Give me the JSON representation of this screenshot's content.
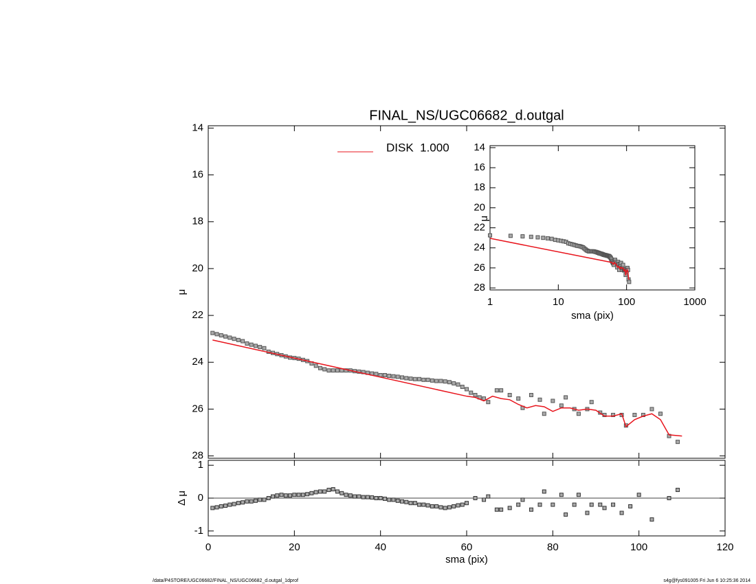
{
  "chart_data": [
    {
      "type": "scatter",
      "title": "FINAL_NS/UGC06682_d.outgal",
      "ylabel": "μ",
      "ylim": [
        28.1,
        13.9
      ],
      "yticks": [
        14,
        16,
        18,
        20,
        22,
        24,
        26,
        28
      ],
      "series": [
        {
          "color": "#555555",
          "x": [
            1,
            2,
            3,
            4,
            5,
            6,
            7,
            8,
            9,
            10,
            11,
            12,
            13,
            14,
            15,
            16,
            17,
            18,
            19,
            20,
            21,
            22,
            23,
            24,
            25,
            26,
            27,
            28,
            29,
            30,
            31,
            32,
            33,
            34,
            35,
            36,
            37,
            38,
            39,
            40,
            41,
            42,
            43,
            44,
            45,
            46,
            47,
            48,
            49,
            50,
            51,
            52,
            53,
            54,
            55,
            56,
            57,
            58,
            59,
            60,
            61,
            62,
            63,
            64,
            65,
            67,
            68,
            70,
            72,
            73,
            75,
            77,
            78,
            80,
            82,
            83,
            85,
            86,
            88,
            89,
            91,
            92,
            94,
            96,
            97,
            99,
            101,
            103,
            105,
            107,
            109
          ],
          "values": [
            22.75,
            22.8,
            22.85,
            22.9,
            22.95,
            23.0,
            23.05,
            23.1,
            23.2,
            23.25,
            23.3,
            23.35,
            23.4,
            23.55,
            23.6,
            23.65,
            23.7,
            23.75,
            23.8,
            23.82,
            23.85,
            23.9,
            23.95,
            24.05,
            24.15,
            24.25,
            24.3,
            24.35,
            24.35,
            24.35,
            24.35,
            24.35,
            24.35,
            24.38,
            24.4,
            24.42,
            24.45,
            24.48,
            24.5,
            24.55,
            24.55,
            24.58,
            24.6,
            24.62,
            24.65,
            24.68,
            24.7,
            24.72,
            24.72,
            24.75,
            24.75,
            24.78,
            24.8,
            24.8,
            24.82,
            24.85,
            24.9,
            24.95,
            25.05,
            25.15,
            25.3,
            25.4,
            25.5,
            25.55,
            25.7,
            25.2,
            25.2,
            25.4,
            25.55,
            25.95,
            25.4,
            25.6,
            26.2,
            25.65,
            25.85,
            25.5,
            26.0,
            26.2,
            26.0,
            25.7,
            26.15,
            26.25,
            26.25,
            26.25,
            26.7,
            26.25,
            26.25,
            26.0,
            26.2,
            27.15,
            27.4
          ]
        },
        {
          "name": "DISK  1.000",
          "color": "#e8141c",
          "x": [
            1,
            60,
            62,
            64,
            66,
            68,
            70,
            72,
            74,
            76,
            78,
            80,
            82,
            84,
            86,
            88,
            90,
            92,
            94,
            96,
            97,
            99,
            101,
            103,
            105,
            107,
            110
          ],
          "values": [
            23.05,
            25.45,
            25.5,
            25.65,
            25.45,
            25.55,
            25.6,
            25.8,
            25.95,
            25.85,
            25.9,
            26.1,
            25.95,
            25.95,
            26.05,
            26.0,
            26.05,
            26.3,
            26.3,
            26.2,
            26.75,
            26.45,
            26.3,
            26.2,
            26.45,
            27.1,
            27.15
          ]
        }
      ]
    },
    {
      "type": "scatter",
      "ylabel": "Δ μ",
      "xlabel": "sma (pix)",
      "xlim": [
        0,
        120
      ],
      "xticks": [
        0,
        20,
        40,
        60,
        80,
        100,
        120
      ],
      "ylim": [
        -1.15,
        1.15
      ],
      "yticks": [
        1,
        0,
        -1
      ],
      "color": "#333333",
      "x": [
        1,
        2,
        3,
        4,
        5,
        6,
        7,
        8,
        9,
        10,
        11,
        12,
        13,
        14,
        15,
        16,
        17,
        18,
        19,
        20,
        21,
        22,
        23,
        24,
        25,
        26,
        27,
        28,
        29,
        30,
        31,
        32,
        33,
        34,
        35,
        36,
        37,
        38,
        39,
        40,
        41,
        42,
        43,
        44,
        45,
        46,
        47,
        48,
        49,
        50,
        51,
        52,
        53,
        54,
        55,
        56,
        57,
        58,
        59,
        60,
        62,
        64,
        65,
        67,
        68,
        70,
        72,
        73,
        75,
        77,
        78,
        80,
        82,
        83,
        85,
        86,
        88,
        89,
        91,
        92,
        94,
        96,
        98,
        100,
        103,
        107,
        109
      ],
      "values": [
        -0.3,
        -0.28,
        -0.25,
        -0.23,
        -0.2,
        -0.18,
        -0.15,
        -0.13,
        -0.1,
        -0.1,
        -0.08,
        -0.05,
        -0.05,
        0.0,
        0.05,
        0.08,
        0.1,
        0.08,
        0.08,
        0.1,
        0.1,
        0.1,
        0.12,
        0.15,
        0.18,
        0.2,
        0.2,
        0.25,
        0.27,
        0.2,
        0.15,
        0.1,
        0.08,
        0.05,
        0.05,
        0.03,
        0.03,
        0.02,
        0.0,
        0.0,
        -0.02,
        -0.05,
        -0.05,
        -0.08,
        -0.1,
        -0.12,
        -0.15,
        -0.15,
        -0.2,
        -0.2,
        -0.22,
        -0.25,
        -0.25,
        -0.28,
        -0.3,
        -0.28,
        -0.25,
        -0.22,
        -0.2,
        -0.15,
        0.0,
        -0.05,
        0.05,
        -0.35,
        -0.35,
        -0.3,
        -0.2,
        -0.05,
        -0.35,
        -0.2,
        0.2,
        -0.2,
        0.1,
        -0.5,
        -0.2,
        0.1,
        -0.45,
        -0.2,
        -0.2,
        -0.3,
        -0.2,
        -0.45,
        -0.25,
        0.1,
        -0.65,
        0.0,
        0.25
      ]
    },
    {
      "type": "scatter",
      "log_x": true,
      "xlabel": "sma (pix)",
      "ylabel": "μ",
      "xlim": [
        1,
        1000
      ],
      "xticks": [
        1,
        10,
        100,
        1000
      ],
      "ylim": [
        28.2,
        13.8
      ],
      "yticks": [
        14,
        16,
        18,
        20,
        22,
        24,
        26,
        28
      ]
    }
  ],
  "footer": {
    "left": "/data/P4STORE/UGC06682/FINAL_NS/UGC06682_d.outgal_1dprof",
    "right": "s4g@fys091005  Fri Jun  6 10:25:36 2014"
  }
}
